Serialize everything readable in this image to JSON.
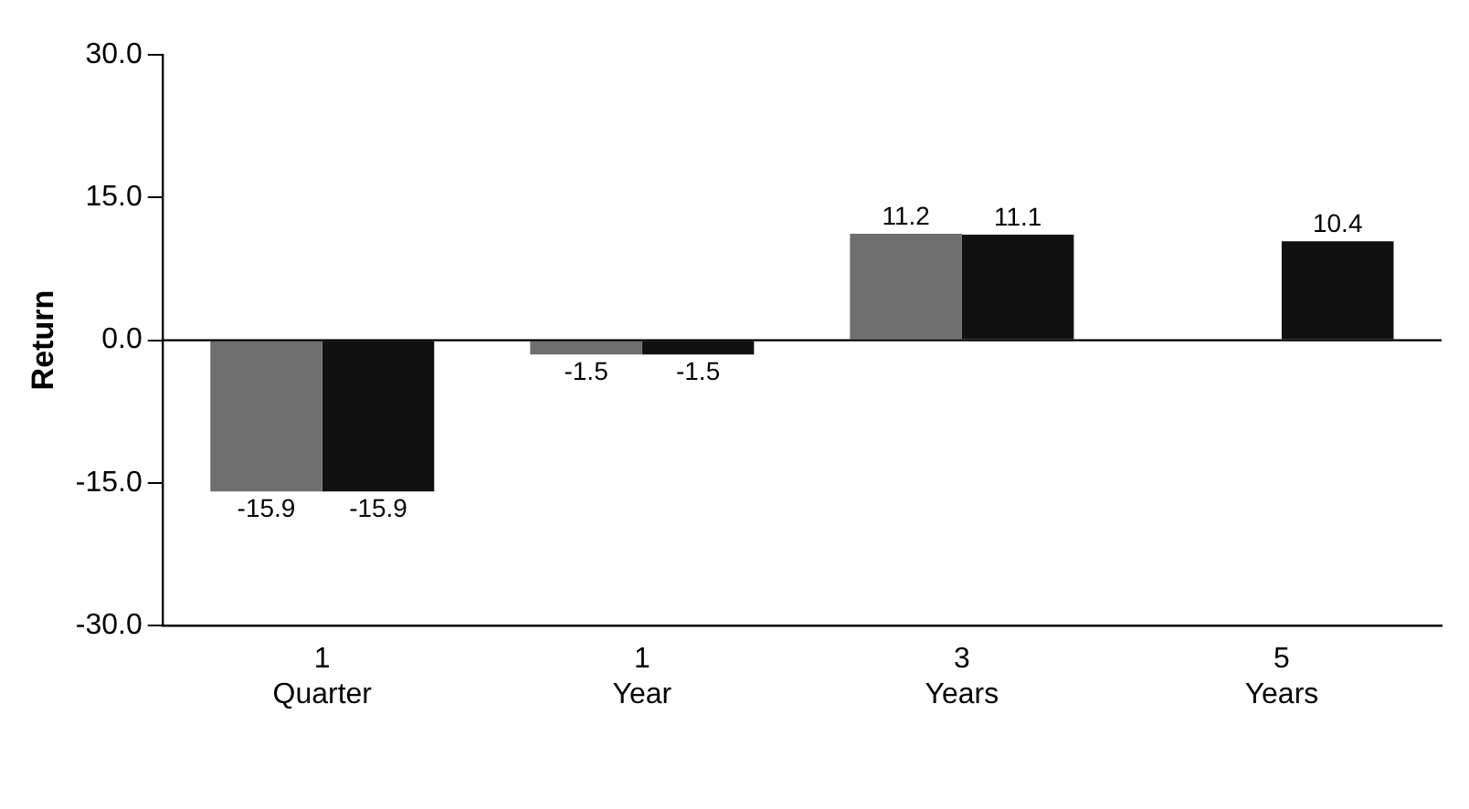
{
  "chart_data": {
    "type": "bar",
    "ylabel": "Return",
    "categories": [
      "1 Quarter",
      "1 Year",
      "3 Years",
      "5 Years"
    ],
    "series": [
      {
        "color": "#6e6e6e",
        "values": [
          -15.9,
          -1.5,
          11.2,
          null
        ]
      },
      {
        "color": "#111111",
        "values": [
          -15.9,
          -1.5,
          11.1,
          10.4
        ]
      }
    ],
    "ylim": [
      -30,
      30
    ],
    "yticks": [
      {
        "value": -30,
        "label": "-30.0"
      },
      {
        "value": -15,
        "label": "-15.0"
      },
      {
        "value": 0,
        "label": "0.0"
      },
      {
        "value": 15,
        "label": "15.0"
      },
      {
        "value": 30,
        "label": "30.0"
      }
    ],
    "ref_lines": [
      {
        "axis": "y",
        "value": 0
      }
    ],
    "grid": false,
    "legend": false,
    "data_labels": true
  }
}
